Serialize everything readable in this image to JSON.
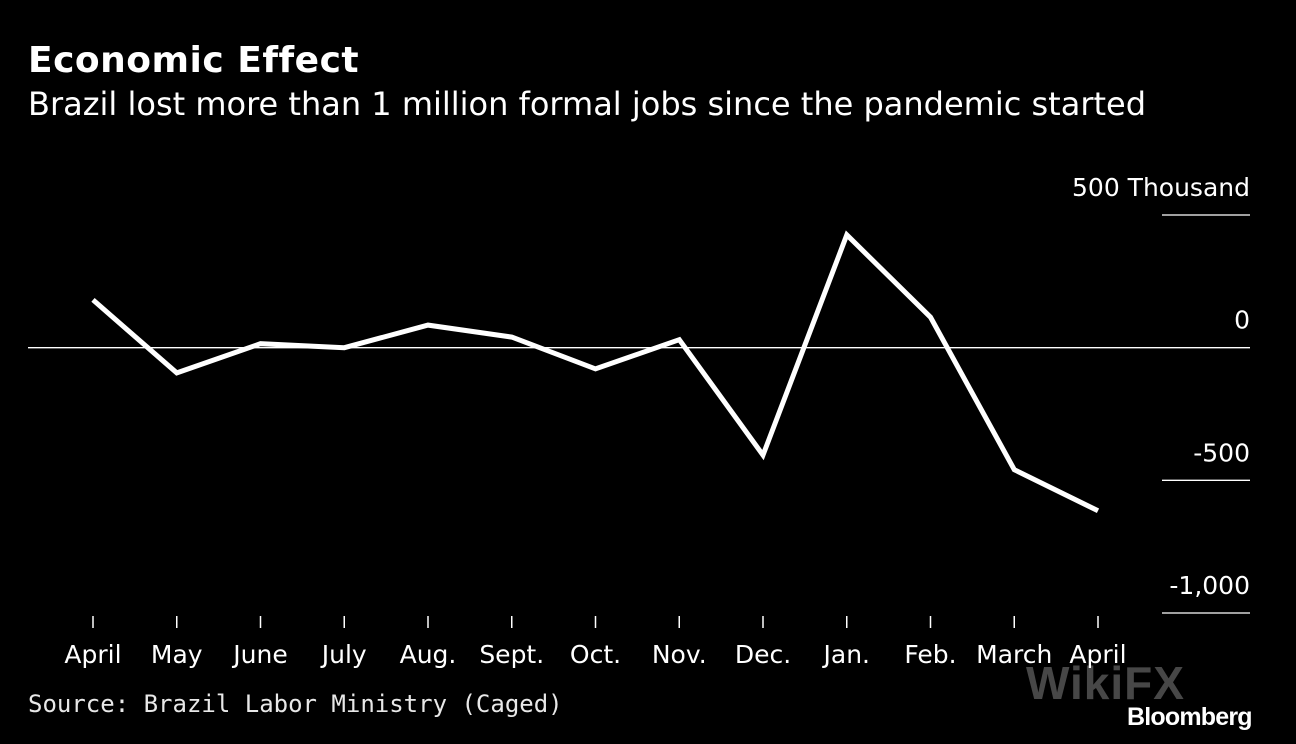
{
  "header": {
    "title": "Economic Effect",
    "subtitle": "Brazil lost more than 1 million formal jobs since the pandemic started"
  },
  "footer": {
    "source": "Source: Brazil Labor Ministry (Caged)",
    "brand": "Bloomberg",
    "watermark": "WikiFX"
  },
  "colors": {
    "background": "#000000",
    "line": "#ffffff",
    "text": "#ffffff"
  },
  "chart_data": {
    "type": "line",
    "title": "Economic Effect",
    "subtitle": "Brazil lost more than 1 million formal jobs since the pandemic started",
    "categories": [
      "April",
      "May",
      "June",
      "July",
      "Aug.",
      "Sept.",
      "Oct.",
      "Nov.",
      "Dec.",
      "Jan.",
      "Feb.",
      "March",
      "April"
    ],
    "series": [
      {
        "values": [
          180,
          -95,
          15,
          0,
          85,
          40,
          -80,
          30,
          -405,
          425,
          115,
          -460,
          -615
        ]
      }
    ],
    "y_ticks": [
      500,
      0,
      -500,
      -1000
    ],
    "y_tick_labels": [
      "500 Thousand",
      "0",
      "-500",
      "-1,000"
    ],
    "ylim": [
      -1000,
      500
    ],
    "ylabel": "",
    "xlabel": "",
    "grid": false,
    "zero_line": true,
    "y_axis_position": "right"
  }
}
